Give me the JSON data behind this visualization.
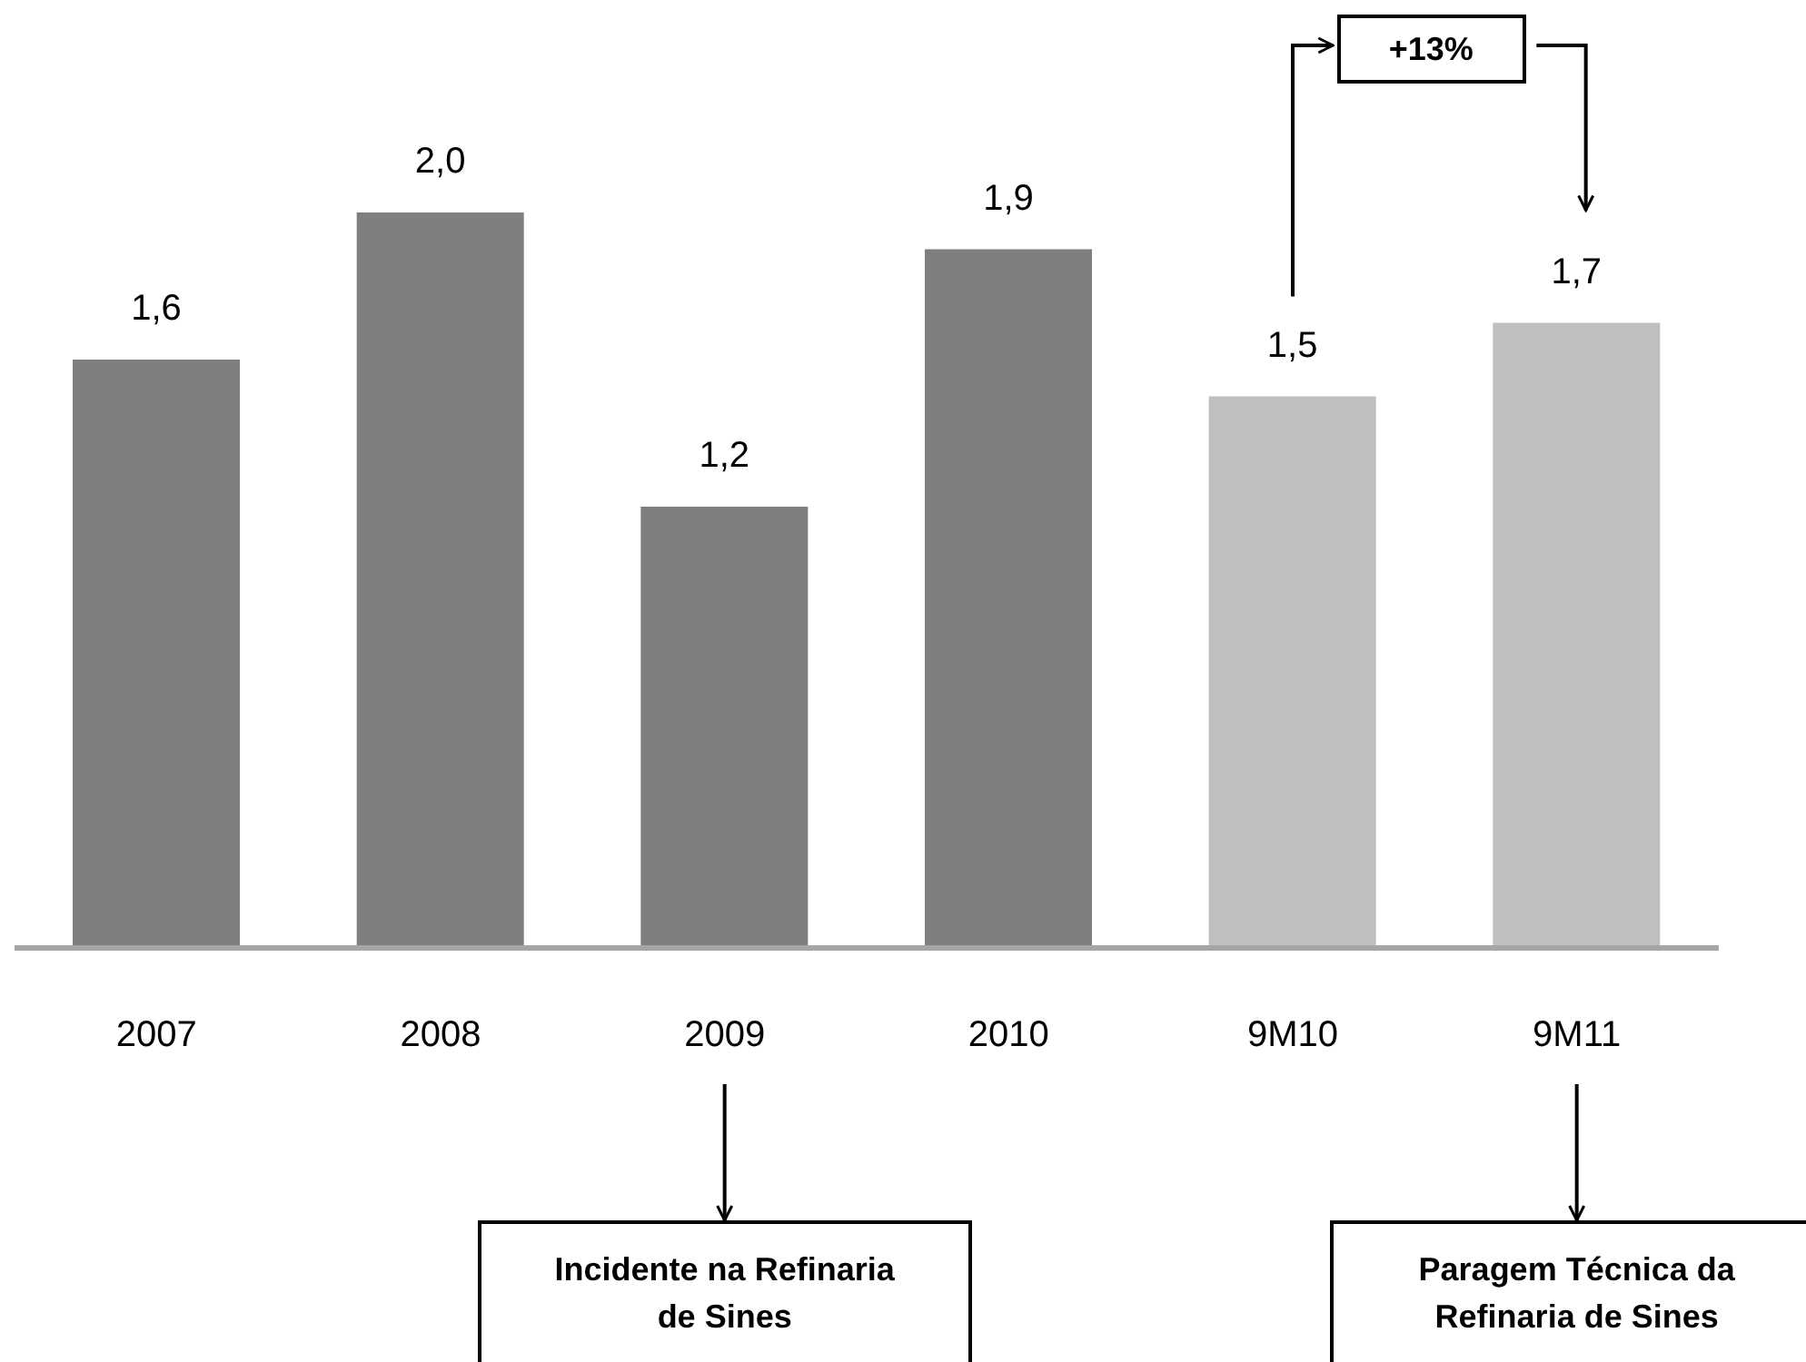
{
  "chart_data": {
    "type": "bar",
    "categories": [
      "2007",
      "2008",
      "2009",
      "2010",
      "9M10",
      "9M11"
    ],
    "values": [
      1.6,
      2.0,
      1.2,
      1.9,
      1.5,
      1.7
    ],
    "value_labels": [
      "1,6",
      "2,0",
      "1,2",
      "1,9",
      "1,5",
      "1,7"
    ],
    "colors": [
      "#7f7f7f",
      "#7f7f7f",
      "#7f7f7f",
      "#7f7f7f",
      "#bfbfbf",
      "#bfbfbf"
    ],
    "annotations": [
      "+13%",
      {
        "text": "Incidente na Refinaria de Sines",
        "x": "2009"
      },
      {
        "text": "Paragem Técnica da Refinaria de Sines",
        "x": "9M11"
      }
    ]
  }
}
